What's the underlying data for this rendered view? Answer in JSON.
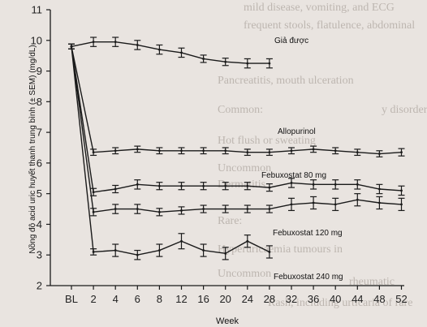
{
  "background_text": [
    "mild disease, vomiting, and ECG",
    "frequent stools, flatulence, abdominal",
    "Pancreatitis, mouth ulceration",
    "Common:",
    "y disorders",
    "Hot flush or sweating",
    "Uncommon",
    "Dermatitis",
    "Rare:",
    "Hyperuricaemia tumours in",
    "Uncommon",
    "rheumatic",
    "Rash, including urticaria of rare"
  ],
  "chart_data": {
    "type": "line",
    "x": [
      "BL",
      "2",
      "4",
      "6",
      "8",
      "12",
      "16",
      "20",
      "24",
      "28",
      "32",
      "36",
      "40",
      "44",
      "48",
      "52"
    ],
    "xlabel": "Week",
    "ylabel": "Nồng độ acid uric huyết thanh trung bình (± SEM) (mg/dL)",
    "ylim": [
      2,
      11
    ],
    "yticks": [
      2,
      3,
      4,
      5,
      6,
      7,
      8,
      9,
      10,
      11
    ],
    "grid": false,
    "colors": {
      "line": "#1a1a1a",
      "background": "#e9e4e0"
    },
    "series": [
      {
        "name": "Giả được",
        "values": [
          9.8,
          9.95,
          9.95,
          9.85,
          9.7,
          9.6,
          9.4,
          9.3,
          9.25,
          9.25,
          null,
          null,
          null,
          null,
          null,
          null
        ],
        "err": [
          0.08,
          0.15,
          0.15,
          0.15,
          0.15,
          0.15,
          0.12,
          0.12,
          0.15,
          0.15,
          null,
          null,
          null,
          null,
          null,
          null
        ]
      },
      {
        "name": "Allopurinol",
        "values": [
          9.8,
          6.35,
          6.4,
          6.45,
          6.4,
          6.4,
          6.4,
          6.4,
          6.35,
          6.35,
          6.4,
          6.45,
          6.4,
          6.35,
          6.3,
          6.35
        ],
        "err": [
          0.08,
          0.1,
          0.1,
          0.1,
          0.1,
          0.1,
          0.1,
          0.1,
          0.1,
          0.1,
          0.1,
          0.1,
          0.1,
          0.1,
          0.1,
          0.12
        ]
      },
      {
        "name": "Febuxostat 80 mg",
        "values": [
          9.8,
          5.05,
          5.15,
          5.3,
          5.25,
          5.25,
          5.25,
          5.25,
          5.25,
          5.2,
          5.35,
          5.3,
          5.3,
          5.3,
          5.15,
          5.1
        ],
        "err": [
          0.08,
          0.12,
          0.12,
          0.15,
          0.12,
          0.12,
          0.12,
          0.12,
          0.12,
          0.12,
          0.15,
          0.15,
          0.15,
          0.15,
          0.15,
          0.15
        ]
      },
      {
        "name": "Febuxostat 120 mg",
        "values": [
          9.8,
          4.4,
          4.5,
          4.5,
          4.4,
          4.45,
          4.5,
          4.5,
          4.5,
          4.5,
          4.65,
          4.7,
          4.65,
          4.8,
          4.7,
          4.65
        ],
        "err": [
          0.08,
          0.12,
          0.15,
          0.15,
          0.12,
          0.12,
          0.12,
          0.12,
          0.12,
          0.12,
          0.2,
          0.2,
          0.2,
          0.2,
          0.2,
          0.2
        ]
      },
      {
        "name": "Febuxostat 240 mg",
        "values": [
          9.8,
          3.1,
          3.15,
          3.0,
          3.15,
          3.45,
          3.15,
          3.05,
          3.45,
          3.1,
          null,
          null,
          null,
          null,
          null,
          null
        ],
        "err": [
          0.08,
          0.1,
          0.2,
          0.15,
          0.2,
          0.25,
          0.2,
          0.2,
          0.2,
          0.2,
          null,
          null,
          null,
          null,
          null,
          null
        ]
      }
    ]
  }
}
